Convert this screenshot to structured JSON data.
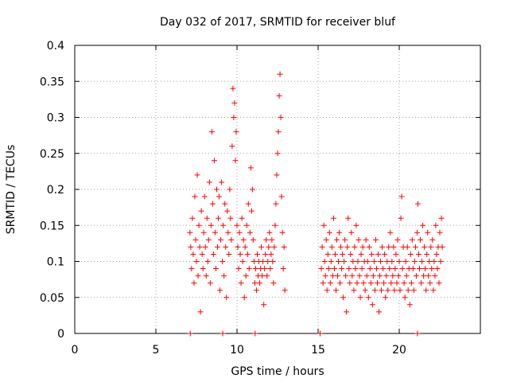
{
  "chart_data": {
    "type": "scatter",
    "title": "Day 032 of 2017, SRMTID for receiver bluf",
    "xlabel": "GPS time / hours",
    "ylabel": "SRMTID / TECUs",
    "xlim": [
      0,
      25
    ],
    "ylim": [
      0,
      0.4
    ],
    "x_ticks": [
      0,
      5,
      10,
      15,
      20
    ],
    "x_tick_labels": [
      "0",
      "5",
      "10",
      "15",
      "20"
    ],
    "y_ticks": [
      0,
      0.05,
      0.1,
      0.15,
      0.2,
      0.25,
      0.3,
      0.35,
      0.4
    ],
    "y_tick_labels": [
      "0",
      "0.05",
      "0.1",
      "0.15",
      "0.2",
      "0.25",
      "0.3",
      "0.35",
      "0.4"
    ],
    "grid": true,
    "marker": "+",
    "colors": {
      "points": "#ff0000",
      "axes": "#000000",
      "grid": "#a0a0a0"
    },
    "series": [
      {
        "values": [
          [
            7.1,
            0.14
          ],
          [
            7.15,
            0.12
          ],
          [
            7.2,
            0.09
          ],
          [
            7.25,
            0.16
          ],
          [
            7.3,
            0.11
          ],
          [
            7.35,
            0.07
          ],
          [
            7.4,
            0.19
          ],
          [
            7.45,
            0.13
          ],
          [
            7.5,
            0.1
          ],
          [
            7.55,
            0.22
          ],
          [
            7.6,
            0.08
          ],
          [
            7.65,
            0.15
          ],
          [
            7.7,
            0.12
          ],
          [
            7.75,
            0.03
          ],
          [
            7.8,
            0.17
          ],
          [
            7.85,
            0.11
          ],
          [
            7.9,
            0.09
          ],
          [
            7.95,
            0.14
          ],
          [
            8.0,
            0.19
          ],
          [
            8.05,
            0.12
          ],
          [
            8.1,
            0.08
          ],
          [
            8.15,
            0.16
          ],
          [
            8.2,
            0.1
          ],
          [
            8.25,
            0.13
          ],
          [
            8.3,
            0.21
          ],
          [
            8.35,
            0.07
          ],
          [
            8.4,
            0.15
          ],
          [
            8.45,
            0.28
          ],
          [
            8.5,
            0.18
          ],
          [
            8.55,
            0.11
          ],
          [
            8.6,
            0.24
          ],
          [
            8.65,
            0.14
          ],
          [
            8.7,
            0.09
          ],
          [
            8.75,
            0.2
          ],
          [
            8.8,
            0.12
          ],
          [
            8.85,
            0.16
          ],
          [
            8.9,
            0.19
          ],
          [
            8.95,
            0.06
          ],
          [
            9.0,
            0.13
          ],
          [
            9.05,
            0.21
          ],
          [
            9.1,
            0.1
          ],
          [
            9.15,
            0.15
          ],
          [
            9.2,
            0.08
          ],
          [
            9.25,
            0.18
          ],
          [
            9.3,
            0.12
          ],
          [
            9.35,
            0.05
          ],
          [
            9.4,
            0.17
          ],
          [
            9.45,
            0.14
          ],
          [
            9.5,
            0.11
          ],
          [
            9.55,
            0.2
          ],
          [
            9.6,
            0.16
          ],
          [
            9.65,
            0.13
          ],
          [
            9.7,
            0.26
          ],
          [
            9.75,
            0.34
          ],
          [
            9.8,
            0.3
          ],
          [
            9.85,
            0.32
          ],
          [
            9.9,
            0.24
          ],
          [
            9.95,
            0.28
          ],
          [
            10.0,
            0.15
          ],
          [
            10.05,
            0.12
          ],
          [
            10.1,
            0.09
          ],
          [
            10.15,
            0.14
          ],
          [
            10.2,
            0.11
          ],
          [
            10.25,
            0.07
          ],
          [
            10.3,
            0.16
          ],
          [
            10.35,
            0.1
          ],
          [
            10.4,
            0.13
          ],
          [
            10.45,
            0.05
          ],
          [
            10.5,
            0.12
          ],
          [
            10.55,
            0.08
          ],
          [
            10.6,
            0.15
          ],
          [
            10.65,
            0.11
          ],
          [
            10.7,
            0.18
          ],
          [
            10.75,
            0.09
          ],
          [
            10.8,
            0.14
          ],
          [
            10.85,
            0.23
          ],
          [
            10.9,
            0.17
          ],
          [
            10.95,
            0.2
          ],
          [
            11.0,
            0.13
          ],
          [
            11.05,
            0.1
          ],
          [
            11.1,
            0.07
          ],
          [
            11.15,
            0.09
          ],
          [
            11.2,
            0.06
          ],
          [
            11.25,
            0.11
          ],
          [
            11.3,
            0.08
          ],
          [
            11.35,
            0.1
          ],
          [
            11.4,
            0.07
          ],
          [
            11.45,
            0.09
          ],
          [
            11.5,
            0.12
          ],
          [
            11.55,
            0.08
          ],
          [
            11.6,
            0.1
          ],
          [
            11.65,
            0.04
          ],
          [
            11.7,
            0.09
          ],
          [
            11.75,
            0.11
          ],
          [
            11.8,
            0.13
          ],
          [
            11.85,
            0.08
          ],
          [
            11.9,
            0.1
          ],
          [
            11.95,
            0.12
          ],
          [
            12.0,
            0.14
          ],
          [
            12.05,
            0.09
          ],
          [
            12.1,
            0.11
          ],
          [
            12.15,
            0.13
          ],
          [
            12.2,
            0.1
          ],
          [
            12.25,
            0.07
          ],
          [
            12.3,
            0.12
          ],
          [
            12.35,
            0.15
          ],
          [
            12.4,
            0.18
          ],
          [
            12.45,
            0.22
          ],
          [
            12.5,
            0.25
          ],
          [
            12.55,
            0.28
          ],
          [
            12.6,
            0.33
          ],
          [
            12.65,
            0.36
          ],
          [
            12.7,
            0.3
          ],
          [
            12.75,
            0.19
          ],
          [
            12.8,
            0.14
          ],
          [
            12.85,
            0.09
          ],
          [
            12.9,
            0.12
          ],
          [
            12.95,
            0.06
          ],
          [
            15.2,
            0.09
          ],
          [
            15.25,
            0.12
          ],
          [
            15.3,
            0.07
          ],
          [
            15.35,
            0.15
          ],
          [
            15.4,
            0.1
          ],
          [
            15.45,
            0.08
          ],
          [
            15.5,
            0.13
          ],
          [
            15.55,
            0.06
          ],
          [
            15.6,
            0.11
          ],
          [
            15.65,
            0.09
          ],
          [
            15.7,
            0.14
          ],
          [
            15.75,
            0.07
          ],
          [
            15.8,
            0.1
          ],
          [
            15.85,
            0.12
          ],
          [
            15.9,
            0.08
          ],
          [
            15.95,
            0.16
          ],
          [
            16.0,
            0.09
          ],
          [
            16.05,
            0.11
          ],
          [
            16.1,
            0.06
          ],
          [
            16.15,
            0.13
          ],
          [
            16.2,
            0.08
          ],
          [
            16.25,
            0.1
          ],
          [
            16.3,
            0.14
          ],
          [
            16.35,
            0.07
          ],
          [
            16.4,
            0.12
          ],
          [
            16.45,
            0.09
          ],
          [
            16.5,
            0.11
          ],
          [
            16.55,
            0.05
          ],
          [
            16.6,
            0.1
          ],
          [
            16.65,
            0.13
          ],
          [
            16.7,
            0.08
          ],
          [
            16.75,
            0.03
          ],
          [
            16.8,
            0.12
          ],
          [
            16.85,
            0.16
          ],
          [
            16.9,
            0.09
          ],
          [
            16.95,
            0.07
          ],
          [
            17.0,
            0.11
          ],
          [
            17.05,
            0.14
          ],
          [
            17.1,
            0.08
          ],
          [
            17.15,
            0.1
          ],
          [
            17.2,
            0.06
          ],
          [
            17.25,
            0.12
          ],
          [
            17.3,
            0.09
          ],
          [
            17.35,
            0.15
          ],
          [
            17.4,
            0.07
          ],
          [
            17.45,
            0.1
          ],
          [
            17.5,
            0.13
          ],
          [
            17.55,
            0.08
          ],
          [
            17.6,
            0.05
          ],
          [
            17.65,
            0.11
          ],
          [
            17.7,
            0.09
          ],
          [
            17.75,
            0.12
          ],
          [
            17.8,
            0.07
          ],
          [
            17.85,
            0.1
          ],
          [
            17.9,
            0.06
          ],
          [
            17.95,
            0.13
          ],
          [
            18.0,
            0.08
          ],
          [
            18.05,
            0.1
          ],
          [
            18.1,
            0.05
          ],
          [
            18.15,
            0.12
          ],
          [
            18.2,
            0.09
          ],
          [
            18.25,
            0.07
          ],
          [
            18.3,
            0.11
          ],
          [
            18.35,
            0.04
          ],
          [
            18.4,
            0.08
          ],
          [
            18.45,
            0.1
          ],
          [
            18.5,
            0.06
          ],
          [
            18.55,
            0.13
          ],
          [
            18.6,
            0.09
          ],
          [
            18.65,
            0.07
          ],
          [
            18.7,
            0.11
          ],
          [
            18.75,
            0.03
          ],
          [
            18.8,
            0.08
          ],
          [
            18.85,
            0.1
          ],
          [
            18.9,
            0.06
          ],
          [
            18.95,
            0.12
          ],
          [
            19.0,
            0.09
          ],
          [
            19.05,
            0.07
          ],
          [
            19.1,
            0.11
          ],
          [
            19.15,
            0.05
          ],
          [
            19.2,
            0.08
          ],
          [
            19.25,
            0.1
          ],
          [
            19.3,
            0.06
          ],
          [
            19.35,
            0.12
          ],
          [
            19.4,
            0.09
          ],
          [
            19.45,
            0.14
          ],
          [
            19.5,
            0.07
          ],
          [
            19.55,
            0.1
          ],
          [
            19.6,
            0.08
          ],
          [
            19.65,
            0.12
          ],
          [
            19.7,
            0.06
          ],
          [
            19.75,
            0.09
          ],
          [
            19.8,
            0.11
          ],
          [
            19.85,
            0.07
          ],
          [
            19.9,
            0.13
          ],
          [
            19.95,
            0.08
          ],
          [
            20.0,
            0.1
          ],
          [
            20.05,
            0.06
          ],
          [
            20.1,
            0.16
          ],
          [
            20.15,
            0.19
          ],
          [
            20.2,
            0.09
          ],
          [
            20.25,
            0.12
          ],
          [
            20.3,
            0.07
          ],
          [
            20.35,
            0.05
          ],
          [
            20.4,
            0.1
          ],
          [
            20.45,
            0.08
          ],
          [
            20.5,
            0.12
          ],
          [
            20.55,
            0.06
          ],
          [
            20.6,
            0.09
          ],
          [
            20.65,
            0.04
          ],
          [
            20.7,
            0.11
          ],
          [
            20.75,
            0.07
          ],
          [
            20.8,
            0.13
          ],
          [
            20.85,
            0.09
          ],
          [
            20.9,
            0.06
          ],
          [
            20.95,
            0.1
          ],
          [
            21.0,
            0.12
          ],
          [
            21.05,
            0.08
          ],
          [
            21.1,
            0.14
          ],
          [
            21.15,
            0.18
          ],
          [
            21.2,
            0.11
          ],
          [
            21.25,
            0.09
          ],
          [
            21.3,
            0.13
          ],
          [
            21.35,
            0.07
          ],
          [
            21.4,
            0.1
          ],
          [
            21.45,
            0.15
          ],
          [
            21.5,
            0.08
          ],
          [
            21.55,
            0.12
          ],
          [
            21.6,
            0.09
          ],
          [
            21.65,
            0.06
          ],
          [
            21.7,
            0.11
          ],
          [
            21.75,
            0.14
          ],
          [
            21.8,
            0.08
          ],
          [
            21.85,
            0.1
          ],
          [
            21.9,
            0.07
          ],
          [
            21.95,
            0.12
          ],
          [
            22.0,
            0.09
          ],
          [
            22.05,
            0.13
          ],
          [
            22.1,
            0.06
          ],
          [
            22.15,
            0.1
          ],
          [
            22.2,
            0.08
          ],
          [
            22.25,
            0.15
          ],
          [
            22.3,
            0.11
          ],
          [
            22.35,
            0.09
          ],
          [
            22.4,
            0.12
          ],
          [
            22.45,
            0.07
          ],
          [
            22.5,
            0.14
          ],
          [
            22.55,
            0.1
          ],
          [
            22.6,
            0.16
          ],
          [
            22.65,
            0.12
          ],
          [
            7.12,
            0.0
          ],
          [
            9.12,
            0.0
          ],
          [
            11.12,
            0.0
          ],
          [
            15.12,
            0.0
          ],
          [
            21.12,
            0.0
          ]
        ]
      }
    ]
  }
}
